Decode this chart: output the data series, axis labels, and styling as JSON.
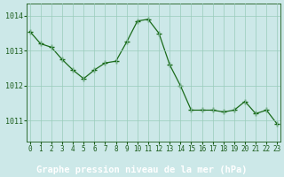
{
  "x": [
    0,
    1,
    2,
    3,
    4,
    5,
    6,
    7,
    8,
    9,
    10,
    11,
    12,
    13,
    14,
    15,
    16,
    17,
    18,
    19,
    20,
    21,
    22,
    23
  ],
  "y": [
    1013.55,
    1013.2,
    1013.1,
    1012.75,
    1012.45,
    1012.2,
    1012.45,
    1012.65,
    1012.7,
    1013.25,
    1013.85,
    1013.9,
    1013.5,
    1012.6,
    1012.0,
    1011.3,
    1011.3,
    1011.3,
    1011.25,
    1011.3,
    1011.55,
    1011.2,
    1011.3,
    1010.9
  ],
  "line_color": "#1a6b1a",
  "marker": "+",
  "marker_size": 4,
  "marker_linewidth": 1.0,
  "bg_color": "#cce8e8",
  "plot_bg_color": "#cce8e8",
  "grid_color": "#99ccbb",
  "tick_color": "#1a5c1a",
  "bottom_bar_color": "#4a7a4a",
  "xlabel": "Graphe pression niveau de la mer (hPa)",
  "xlabel_fontsize": 7.5,
  "tick_fontsize": 5.5,
  "ytick_fontsize": 6.0,
  "yticks": [
    1011,
    1012,
    1013,
    1014
  ],
  "xticks": [
    0,
    1,
    2,
    3,
    4,
    5,
    6,
    7,
    8,
    9,
    10,
    11,
    12,
    13,
    14,
    15,
    16,
    17,
    18,
    19,
    20,
    21,
    22,
    23
  ],
  "ylim": [
    1010.4,
    1014.35
  ],
  "xlim": [
    -0.3,
    23.3
  ]
}
